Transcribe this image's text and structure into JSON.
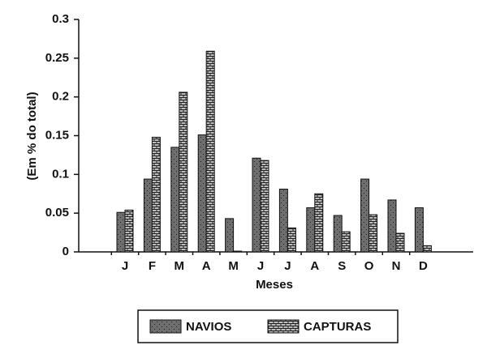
{
  "chart_data": {
    "type": "bar",
    "xlabel": "Meses",
    "ylabel": "(Em % do total)",
    "categories": [
      "J",
      "F",
      "M",
      "A",
      "M",
      "J",
      "J",
      "A",
      "S",
      "O",
      "N",
      "D"
    ],
    "series": [
      {
        "name": "NAVIOS",
        "color": "#6e6e6e",
        "values": [
          0.051,
          0.094,
          0.135,
          0.151,
          0.043,
          0.121,
          0.081,
          0.057,
          0.047,
          0.094,
          0.067,
          0.057
        ]
      },
      {
        "name": "CAPTURAS",
        "color": "#bdbdbd",
        "values": [
          0.054,
          0.148,
          0.206,
          0.259,
          0.001,
          0.118,
          0.031,
          0.075,
          0.026,
          0.048,
          0.024,
          0.008
        ]
      }
    ],
    "ylim": [
      0,
      0.3
    ],
    "yticks": [
      0,
      0.05,
      0.1,
      0.15,
      0.2,
      0.25,
      0.3
    ],
    "legend": "bottom"
  }
}
